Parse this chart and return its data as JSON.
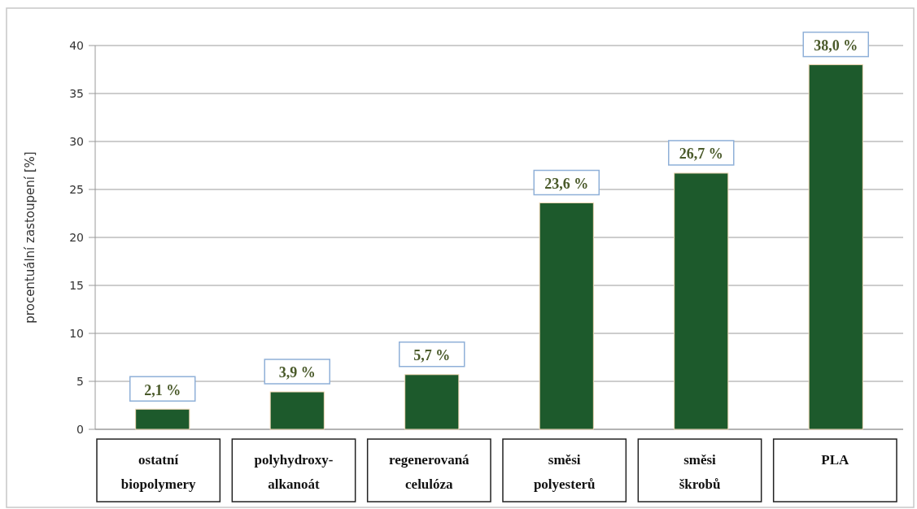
{
  "chart_data": {
    "type": "bar",
    "ylabel": "procentuální zastoupení [%]",
    "categories": [
      "ostatní\nbiopolymery",
      "polyhydroxy-\nalkanoát",
      "regenerovaná\ncelulóza",
      "směsi\npolyesterů",
      "směsi\nškrobů",
      "PLA"
    ],
    "values": [
      2.1,
      3.9,
      5.7,
      23.6,
      26.7,
      38.0
    ],
    "value_labels": [
      "2,1 %",
      "3,9 %",
      "5,7 %",
      "23,6 %",
      "26,7 %",
      "38,0 %"
    ],
    "color": "#1d5a2c",
    "ylim": [
      0,
      40
    ],
    "yticks": [
      0,
      5,
      10,
      15,
      20,
      25,
      30,
      35,
      40
    ],
    "grid": "y"
  }
}
